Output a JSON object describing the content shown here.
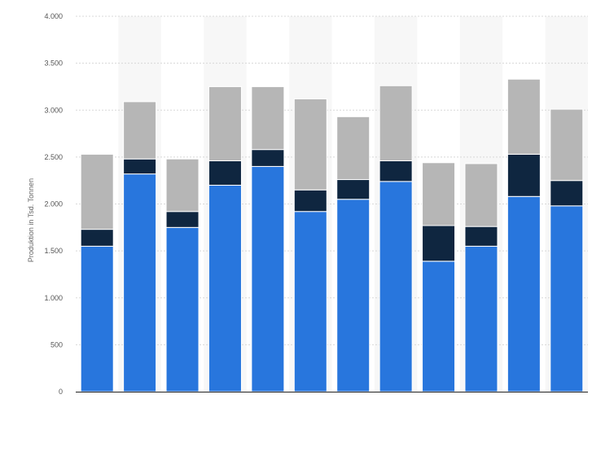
{
  "chart_data": {
    "type": "bar",
    "stacked": true,
    "categories": [
      "",
      "",
      "",
      "",
      "",
      "",
      "",
      "",
      "",
      "",
      "",
      ""
    ],
    "series": [
      {
        "values": [
          1550,
          2320,
          1750,
          2200,
          2400,
          1920,
          2050,
          2240,
          1390,
          1550,
          2080,
          1980
        ]
      },
      {
        "values": [
          180,
          160,
          170,
          260,
          180,
          230,
          210,
          220,
          380,
          210,
          450,
          270
        ]
      },
      {
        "values": [
          800,
          610,
          560,
          790,
          670,
          970,
          670,
          800,
          670,
          670,
          800,
          760
        ]
      }
    ],
    "colors": [
      "#2876dd",
      "#0f2640",
      "#b6b6b6"
    ],
    "ylabel": "Produktion in Tsd. Tonnen",
    "ylim": [
      0,
      4000
    ],
    "yticks": [
      0,
      500,
      1000,
      1500,
      2000,
      2500,
      3000,
      3500,
      4000
    ],
    "ytick_labels": [
      "0",
      "500",
      "1.000",
      "1.500",
      "2.000",
      "2.500",
      "3.000",
      "3.500",
      "4.000"
    ],
    "grid": true,
    "legend": "none"
  }
}
